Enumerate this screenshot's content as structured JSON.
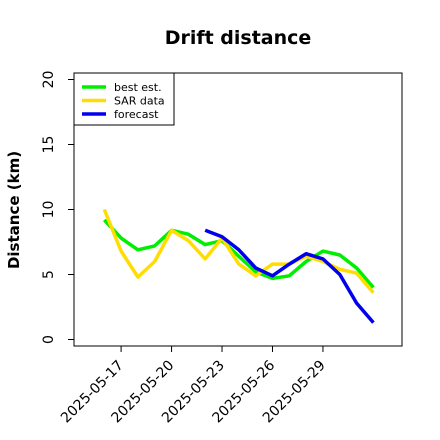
{
  "chart_data": {
    "type": "line",
    "title": "Drift distance",
    "xlabel": "",
    "ylabel": "Distance (km)",
    "x_tick_labels": [
      "2025-05-17",
      "2025-05-20",
      "2025-05-23",
      "2025-05-26",
      "2025-05-29"
    ],
    "y_tick_labels": [
      "0",
      "5",
      "10",
      "15",
      "20"
    ],
    "ylim": [
      -0.5,
      20.5
    ],
    "grid": false,
    "legend_position": "upper-left",
    "series": [
      {
        "name": "best est.",
        "color": "#00ee00",
        "x": [
          "2025-05-16",
          "2025-05-17",
          "2025-05-18",
          "2025-05-19",
          "2025-05-20",
          "2025-05-21",
          "2025-05-22",
          "2025-05-23",
          "2025-05-24",
          "2025-05-25",
          "2025-05-26",
          "2025-05-27",
          "2025-05-28",
          "2025-05-29",
          "2025-05-30",
          "2025-05-31",
          "2025-06-01"
        ],
        "values": [
          9.2,
          7.8,
          6.9,
          7.2,
          8.4,
          8.1,
          7.3,
          7.6,
          6.4,
          5.2,
          4.7,
          4.9,
          6.0,
          6.8,
          6.5,
          5.5,
          4.0
        ]
      },
      {
        "name": "SAR data",
        "color": "#ffdd00",
        "x": [
          "2025-05-16",
          "2025-05-17",
          "2025-05-18",
          "2025-05-19",
          "2025-05-20",
          "2025-05-21",
          "2025-05-22",
          "2025-05-23",
          "2025-05-24",
          "2025-05-25",
          "2025-05-26",
          "2025-05-27",
          "2025-05-28",
          "2025-05-29",
          "2025-05-30",
          "2025-05-31",
          "2025-06-01"
        ],
        "values": [
          10.0,
          6.8,
          4.8,
          6.0,
          8.4,
          7.6,
          6.2,
          7.8,
          5.8,
          4.9,
          5.8,
          5.8,
          6.4,
          6.0,
          5.4,
          5.1,
          3.6
        ]
      },
      {
        "name": "forecast",
        "color": "#0000ee",
        "x": [
          "2025-05-22",
          "2025-05-23",
          "2025-05-24",
          "2025-05-25",
          "2025-05-26",
          "2025-05-27",
          "2025-05-28",
          "2025-05-29",
          "2025-05-30",
          "2025-05-31",
          "2025-06-01"
        ],
        "values": [
          8.4,
          7.9,
          6.9,
          5.5,
          4.9,
          5.8,
          6.6,
          6.2,
          5.0,
          2.8,
          1.3
        ]
      }
    ]
  }
}
